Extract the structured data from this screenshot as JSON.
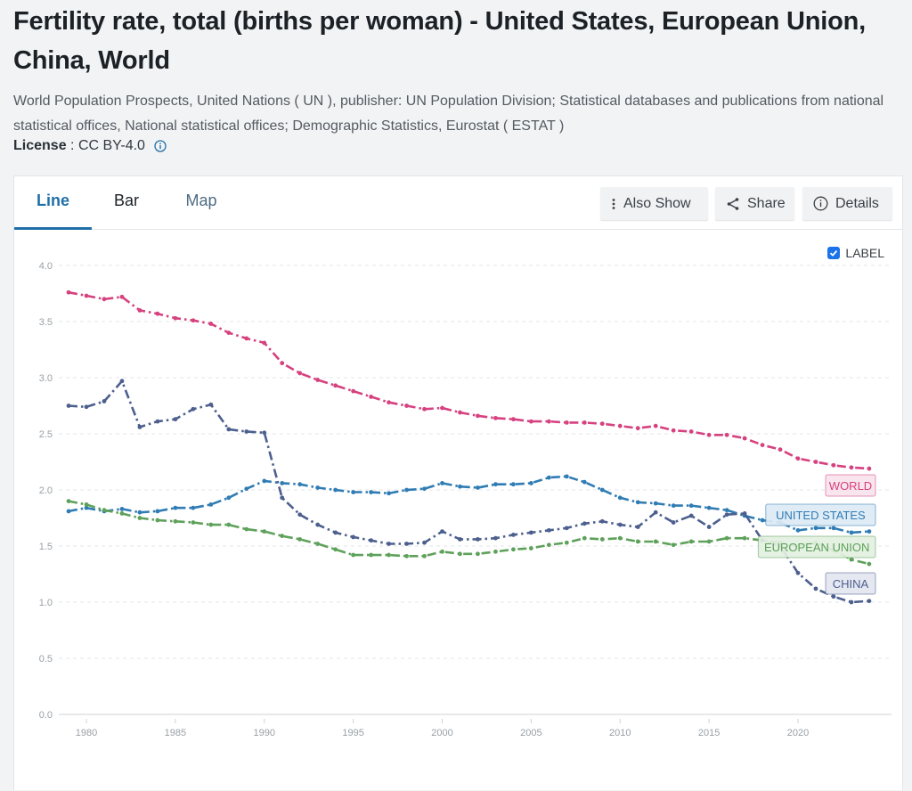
{
  "header": {
    "title": "Fertility rate, total (births per woman) - United States, European Union, China, World",
    "source": "World Population Prospects, United Nations ( UN ), publisher: UN Population Division; Statistical databases and publications from national statistical offices, National statistical offices; Demographic Statistics, Eurostat ( ESTAT )",
    "license_label": "License",
    "license_sep": " : ",
    "license_value": "CC BY-4.0",
    "license_info_icon": "info-circle-icon"
  },
  "tabs": [
    {
      "label": "Line",
      "active": true
    },
    {
      "label": "Bar",
      "active": false
    },
    {
      "label": "Map",
      "active": false
    }
  ],
  "toolbar": {
    "also_show_label": "Also Show",
    "also_show_icon": "more-vertical-icon",
    "share_label": "Share",
    "share_icon": "share-icon",
    "details_label": "Details",
    "details_icon": "info-circle-icon"
  },
  "label_toggle": {
    "label": "LABEL",
    "checked": true
  },
  "chart_data": {
    "type": "line",
    "title": "Fertility rate, total (births per woman)",
    "xlabel": "",
    "ylabel": "",
    "ylim": [
      0,
      4
    ],
    "xlim": [
      1979,
      2024
    ],
    "y_ticks": [
      "0.0",
      "0.5",
      "1.0",
      "1.5",
      "2.0",
      "2.5",
      "3.0",
      "3.5",
      "4.0"
    ],
    "y_tick_values": [
      0,
      0.5,
      1,
      1.5,
      2,
      2.5,
      3,
      3.5,
      4
    ],
    "x_ticks": [
      "1980",
      "1985",
      "1990",
      "1995",
      "2000",
      "2005",
      "2010",
      "2015",
      "2020"
    ],
    "x_tick_values": [
      1980,
      1985,
      1990,
      1995,
      2000,
      2005,
      2010,
      2015,
      2020
    ],
    "grid": true,
    "legend": "inline-labels-right",
    "x": [
      1979,
      1980,
      1981,
      1982,
      1983,
      1984,
      1985,
      1986,
      1987,
      1988,
      1989,
      1990,
      1991,
      1992,
      1993,
      1994,
      1995,
      1996,
      1997,
      1998,
      1999,
      2000,
      2001,
      2002,
      2003,
      2004,
      2005,
      2006,
      2007,
      2008,
      2009,
      2010,
      2011,
      2012,
      2013,
      2014,
      2015,
      2016,
      2017,
      2018,
      2019,
      2020,
      2021,
      2022,
      2023,
      2024
    ],
    "series": [
      {
        "name": "WORLD",
        "color": "#d6417f",
        "label_bg": "#f9e3ec",
        "values": [
          3.76,
          3.73,
          3.7,
          3.72,
          3.6,
          3.57,
          3.53,
          3.51,
          3.48,
          3.4,
          3.35,
          3.31,
          3.13,
          3.04,
          2.98,
          2.93,
          2.88,
          2.83,
          2.78,
          2.75,
          2.72,
          2.73,
          2.69,
          2.66,
          2.64,
          2.63,
          2.61,
          2.61,
          2.6,
          2.6,
          2.59,
          2.57,
          2.55,
          2.57,
          2.53,
          2.52,
          2.49,
          2.49,
          2.46,
          2.4,
          2.36,
          2.28,
          2.25,
          2.22,
          2.2,
          2.19
        ]
      },
      {
        "name": "UNITED STATES",
        "color": "#2f7cb4",
        "label_bg": "#dceaf5",
        "values": [
          1.81,
          1.84,
          1.81,
          1.83,
          1.8,
          1.81,
          1.84,
          1.84,
          1.87,
          1.93,
          2.01,
          2.08,
          2.06,
          2.05,
          2.02,
          2.0,
          1.98,
          1.98,
          1.97,
          2.0,
          2.01,
          2.06,
          2.03,
          2.02,
          2.05,
          2.05,
          2.06,
          2.11,
          2.12,
          2.07,
          2.0,
          1.93,
          1.89,
          1.88,
          1.86,
          1.86,
          1.84,
          1.82,
          1.77,
          1.73,
          1.71,
          1.64,
          1.66,
          1.66,
          1.62,
          1.63
        ]
      },
      {
        "name": "EUROPEAN UNION",
        "color": "#5ea15a",
        "label_bg": "#e3f0e1",
        "values": [
          1.9,
          1.87,
          1.82,
          1.79,
          1.75,
          1.73,
          1.72,
          1.71,
          1.69,
          1.69,
          1.65,
          1.63,
          1.59,
          1.56,
          1.52,
          1.47,
          1.42,
          1.42,
          1.42,
          1.41,
          1.41,
          1.45,
          1.43,
          1.43,
          1.45,
          1.47,
          1.48,
          1.51,
          1.53,
          1.57,
          1.56,
          1.57,
          1.54,
          1.54,
          1.51,
          1.54,
          1.54,
          1.57,
          1.57,
          1.55,
          1.53,
          1.5,
          1.53,
          1.46,
          1.38,
          1.34
        ]
      },
      {
        "name": "CHINA",
        "color": "#4c5f8e",
        "label_bg": "#e3e6f0",
        "values": [
          2.75,
          2.74,
          2.79,
          2.97,
          2.56,
          2.61,
          2.63,
          2.72,
          2.76,
          2.54,
          2.52,
          2.51,
          1.93,
          1.78,
          1.69,
          1.62,
          1.58,
          1.55,
          1.52,
          1.52,
          1.53,
          1.63,
          1.56,
          1.56,
          1.57,
          1.6,
          1.62,
          1.64,
          1.66,
          1.7,
          1.72,
          1.69,
          1.67,
          1.8,
          1.71,
          1.77,
          1.67,
          1.78,
          1.79,
          1.55,
          1.5,
          1.26,
          1.12,
          1.05,
          1.0,
          1.01
        ]
      }
    ]
  }
}
